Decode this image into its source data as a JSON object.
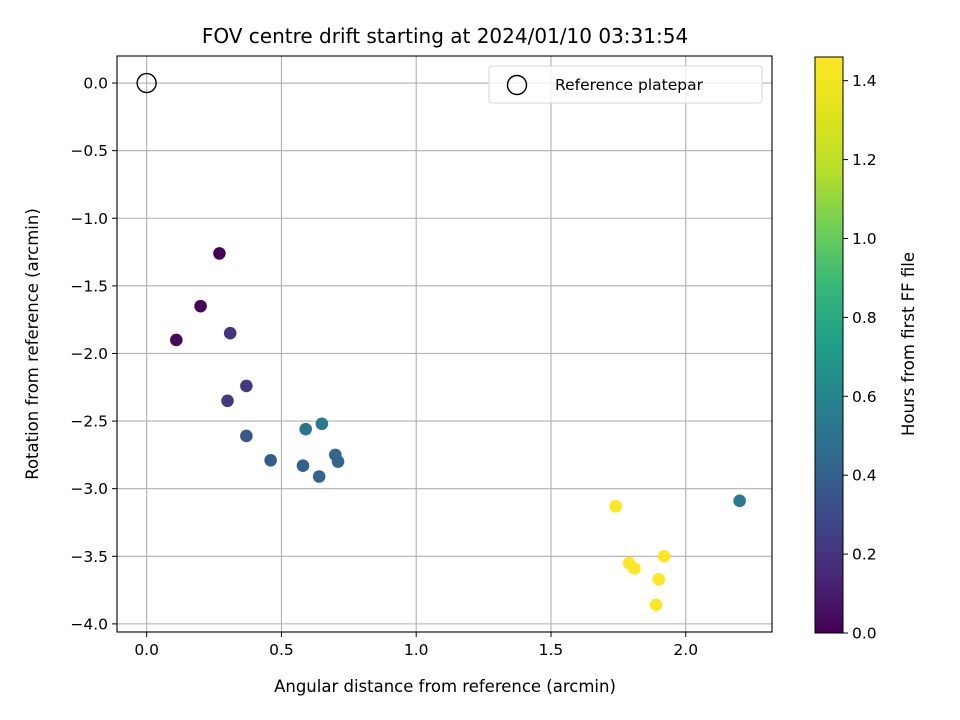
{
  "chart_data": {
    "type": "scatter",
    "title": "FOV centre drift starting at 2024/01/10 03:31:54",
    "xlabel": "Angular distance from reference (arcmin)",
    "ylabel": "Rotation from reference (arcmin)",
    "colorbar_label": "Hours from first FF file",
    "xlim": [
      -0.11,
      2.32
    ],
    "ylim": [
      -4.06,
      0.2
    ],
    "x_ticks": [
      0.0,
      0.5,
      1.0,
      1.5,
      2.0
    ],
    "x_tick_labels": [
      "0.0",
      "0.5",
      "1.0",
      "1.5",
      "2.0"
    ],
    "y_ticks": [
      0.0,
      -0.5,
      -1.0,
      -1.5,
      -2.0,
      -2.5,
      -3.0,
      -3.5,
      -4.0
    ],
    "y_tick_labels": [
      "0.0",
      "−0.5",
      "−1.0",
      "−1.5",
      "−2.0",
      "−2.5",
      "−3.0",
      "−3.5",
      "−4.0"
    ],
    "colorbar_range": [
      0.0,
      1.46
    ],
    "colorbar_ticks": [
      0.0,
      0.2,
      0.4,
      0.6,
      0.8,
      1.0,
      1.2,
      1.4
    ],
    "colorbar_tick_labels": [
      "0.0",
      "0.2",
      "0.4",
      "0.6",
      "0.8",
      "1.0",
      "1.2",
      "1.4"
    ],
    "colormap": "viridis",
    "grid": true,
    "legend_position": "top-right",
    "reference": {
      "name": "Reference platepar",
      "x": 0.0,
      "y": 0.0
    },
    "points": [
      {
        "x": 0.27,
        "y": -1.26,
        "hours": 0.0
      },
      {
        "x": 0.2,
        "y": -1.65,
        "hours": 0.02
      },
      {
        "x": 0.11,
        "y": -1.9,
        "hours": 0.04
      },
      {
        "x": 0.31,
        "y": -1.85,
        "hours": 0.2
      },
      {
        "x": 0.37,
        "y": -2.24,
        "hours": 0.22
      },
      {
        "x": 0.3,
        "y": -2.35,
        "hours": 0.22
      },
      {
        "x": 0.37,
        "y": -2.61,
        "hours": 0.36
      },
      {
        "x": 0.46,
        "y": -2.79,
        "hours": 0.38
      },
      {
        "x": 0.59,
        "y": -2.56,
        "hours": 0.5
      },
      {
        "x": 0.65,
        "y": -2.52,
        "hours": 0.52
      },
      {
        "x": 0.58,
        "y": -2.83,
        "hours": 0.4
      },
      {
        "x": 0.64,
        "y": -2.91,
        "hours": 0.42
      },
      {
        "x": 0.7,
        "y": -2.75,
        "hours": 0.44
      },
      {
        "x": 0.71,
        "y": -2.8,
        "hours": 0.42
      },
      {
        "x": 2.2,
        "y": -3.09,
        "hours": 0.54
      },
      {
        "x": 1.74,
        "y": -3.13,
        "hours": 1.46
      },
      {
        "x": 1.79,
        "y": -3.55,
        "hours": 1.46
      },
      {
        "x": 1.81,
        "y": -3.59,
        "hours": 1.46
      },
      {
        "x": 1.92,
        "y": -3.5,
        "hours": 1.46
      },
      {
        "x": 1.9,
        "y": -3.67,
        "hours": 1.46
      },
      {
        "x": 1.89,
        "y": -3.86,
        "hours": 1.46
      }
    ]
  }
}
